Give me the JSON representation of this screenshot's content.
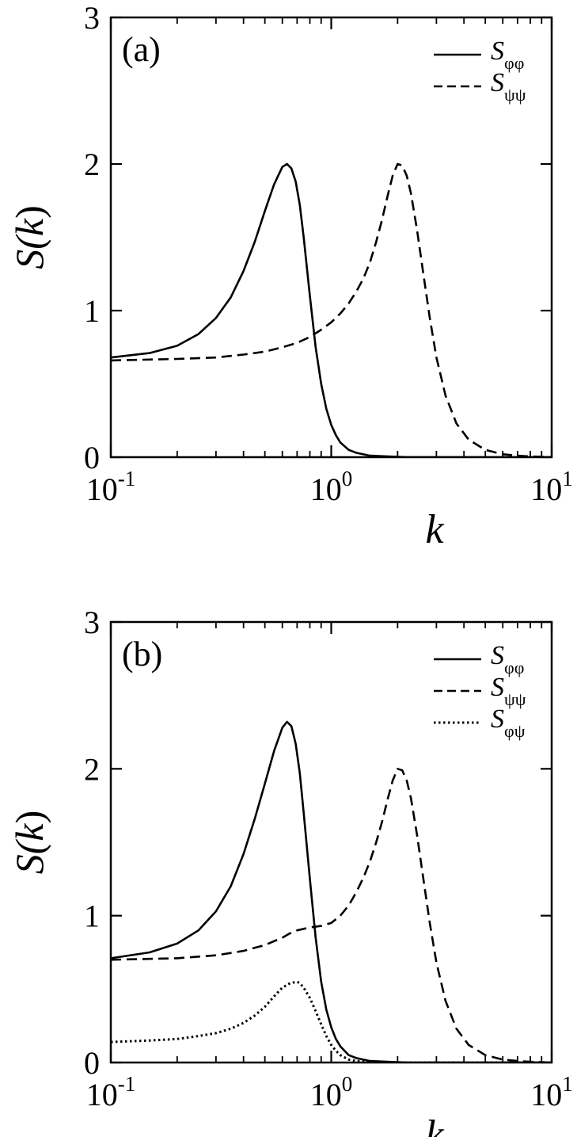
{
  "chart_data": [
    {
      "panel_label": "(a)",
      "type": "line",
      "xscale": "log",
      "xlim": [
        0.1,
        10
      ],
      "ylim": [
        0,
        3
      ],
      "xlabel": "k",
      "ylabel_base": "S(",
      "ylabel_italic": "k",
      "ylabel_close": ")",
      "grid": false,
      "legend_position": "top-right",
      "x_ticks": [
        {
          "value": 0.1,
          "base": "10",
          "exp": "-1"
        },
        {
          "value": 1,
          "base": "10",
          "exp": "0"
        },
        {
          "value": 10,
          "base": "10",
          "exp": "1"
        }
      ],
      "y_ticks": [
        {
          "value": 0,
          "label": "0"
        },
        {
          "value": 1,
          "label": "1"
        },
        {
          "value": 2,
          "label": "2"
        },
        {
          "value": 3,
          "label": "3"
        }
      ],
      "series": [
        {
          "name": "S",
          "sub": "φφ",
          "style": "solid",
          "x": [
            0.1,
            0.15,
            0.2,
            0.25,
            0.3,
            0.35,
            0.4,
            0.45,
            0.5,
            0.55,
            0.6,
            0.63,
            0.66,
            0.69,
            0.72,
            0.75,
            0.8,
            0.85,
            0.9,
            0.95,
            1.0,
            1.05,
            1.1,
            1.2,
            1.3,
            1.5,
            1.8,
            2.2,
            3,
            5,
            10
          ],
          "y": [
            0.68,
            0.71,
            0.76,
            0.84,
            0.95,
            1.09,
            1.27,
            1.47,
            1.68,
            1.86,
            1.98,
            2.0,
            1.97,
            1.88,
            1.72,
            1.5,
            1.1,
            0.75,
            0.5,
            0.33,
            0.22,
            0.15,
            0.1,
            0.05,
            0.03,
            0.01,
            0.005,
            0,
            0,
            0,
            0
          ]
        },
        {
          "name": "S",
          "sub": "ψψ",
          "style": "dashed",
          "x": [
            0.1,
            0.2,
            0.3,
            0.4,
            0.5,
            0.6,
            0.7,
            0.8,
            0.9,
            1.0,
            1.1,
            1.2,
            1.3,
            1.4,
            1.5,
            1.6,
            1.7,
            1.8,
            1.9,
            2.0,
            2.1,
            2.2,
            2.3,
            2.45,
            2.6,
            2.8,
            3.0,
            3.3,
            3.7,
            4.2,
            5,
            6,
            7,
            8,
            10
          ],
          "y": [
            0.66,
            0.67,
            0.68,
            0.7,
            0.72,
            0.75,
            0.78,
            0.82,
            0.87,
            0.92,
            0.98,
            1.05,
            1.13,
            1.22,
            1.33,
            1.47,
            1.62,
            1.78,
            1.92,
            2.0,
            1.99,
            1.92,
            1.8,
            1.55,
            1.28,
            0.95,
            0.68,
            0.42,
            0.23,
            0.12,
            0.05,
            0.02,
            0.01,
            0.005,
            0
          ]
        }
      ]
    },
    {
      "panel_label": "(b)",
      "type": "line",
      "xscale": "log",
      "xlim": [
        0.1,
        10
      ],
      "ylim": [
        0,
        3
      ],
      "xlabel": "k",
      "ylabel_base": "S(",
      "ylabel_italic": "k",
      "ylabel_close": ")",
      "grid": false,
      "legend_position": "top-right",
      "x_ticks": [
        {
          "value": 0.1,
          "base": "10",
          "exp": "-1"
        },
        {
          "value": 1,
          "base": "10",
          "exp": "0"
        },
        {
          "value": 10,
          "base": "10",
          "exp": "1"
        }
      ],
      "y_ticks": [
        {
          "value": 0,
          "label": "0"
        },
        {
          "value": 1,
          "label": "1"
        },
        {
          "value": 2,
          "label": "2"
        },
        {
          "value": 3,
          "label": "3"
        }
      ],
      "series": [
        {
          "name": "S",
          "sub": "φφ",
          "style": "solid",
          "x": [
            0.1,
            0.15,
            0.2,
            0.25,
            0.3,
            0.35,
            0.4,
            0.45,
            0.5,
            0.55,
            0.6,
            0.63,
            0.66,
            0.69,
            0.72,
            0.75,
            0.8,
            0.85,
            0.9,
            0.95,
            1.0,
            1.05,
            1.1,
            1.2,
            1.3,
            1.5,
            1.8,
            2.2,
            3,
            5,
            10
          ],
          "y": [
            0.71,
            0.75,
            0.81,
            0.9,
            1.03,
            1.2,
            1.42,
            1.66,
            1.9,
            2.12,
            2.28,
            2.32,
            2.29,
            2.17,
            1.97,
            1.7,
            1.25,
            0.85,
            0.55,
            0.36,
            0.24,
            0.16,
            0.11,
            0.05,
            0.03,
            0.01,
            0.005,
            0,
            0,
            0,
            0
          ]
        },
        {
          "name": "S",
          "sub": "ψψ",
          "style": "dashed",
          "x": [
            0.1,
            0.2,
            0.3,
            0.4,
            0.5,
            0.6,
            0.65,
            0.7,
            0.75,
            0.8,
            0.9,
            1.0,
            1.1,
            1.2,
            1.3,
            1.4,
            1.5,
            1.6,
            1.7,
            1.8,
            1.9,
            2.0,
            2.1,
            2.2,
            2.3,
            2.45,
            2.6,
            2.8,
            3.0,
            3.3,
            3.7,
            4.2,
            5,
            6,
            7,
            8,
            10
          ],
          "y": [
            0.7,
            0.71,
            0.73,
            0.76,
            0.8,
            0.85,
            0.88,
            0.9,
            0.91,
            0.92,
            0.93,
            0.95,
            1.0,
            1.07,
            1.16,
            1.26,
            1.37,
            1.5,
            1.64,
            1.79,
            1.92,
            2.0,
            1.99,
            1.92,
            1.8,
            1.55,
            1.28,
            0.95,
            0.68,
            0.42,
            0.23,
            0.12,
            0.05,
            0.02,
            0.01,
            0.005,
            0
          ]
        },
        {
          "name": "S",
          "sub": "φψ",
          "style": "dotted",
          "x": [
            0.1,
            0.15,
            0.2,
            0.25,
            0.3,
            0.35,
            0.4,
            0.45,
            0.5,
            0.55,
            0.6,
            0.65,
            0.7,
            0.72,
            0.75,
            0.8,
            0.85,
            0.9,
            0.95,
            1.0,
            1.05,
            1.1,
            1.2,
            1.3,
            1.5,
            1.8,
            2.2,
            3,
            5,
            10
          ],
          "y": [
            0.14,
            0.15,
            0.16,
            0.18,
            0.2,
            0.23,
            0.27,
            0.32,
            0.38,
            0.45,
            0.51,
            0.54,
            0.55,
            0.54,
            0.51,
            0.44,
            0.35,
            0.26,
            0.18,
            0.12,
            0.08,
            0.05,
            0.02,
            0.01,
            0.005,
            0,
            0,
            0,
            0,
            0
          ]
        }
      ]
    }
  ]
}
